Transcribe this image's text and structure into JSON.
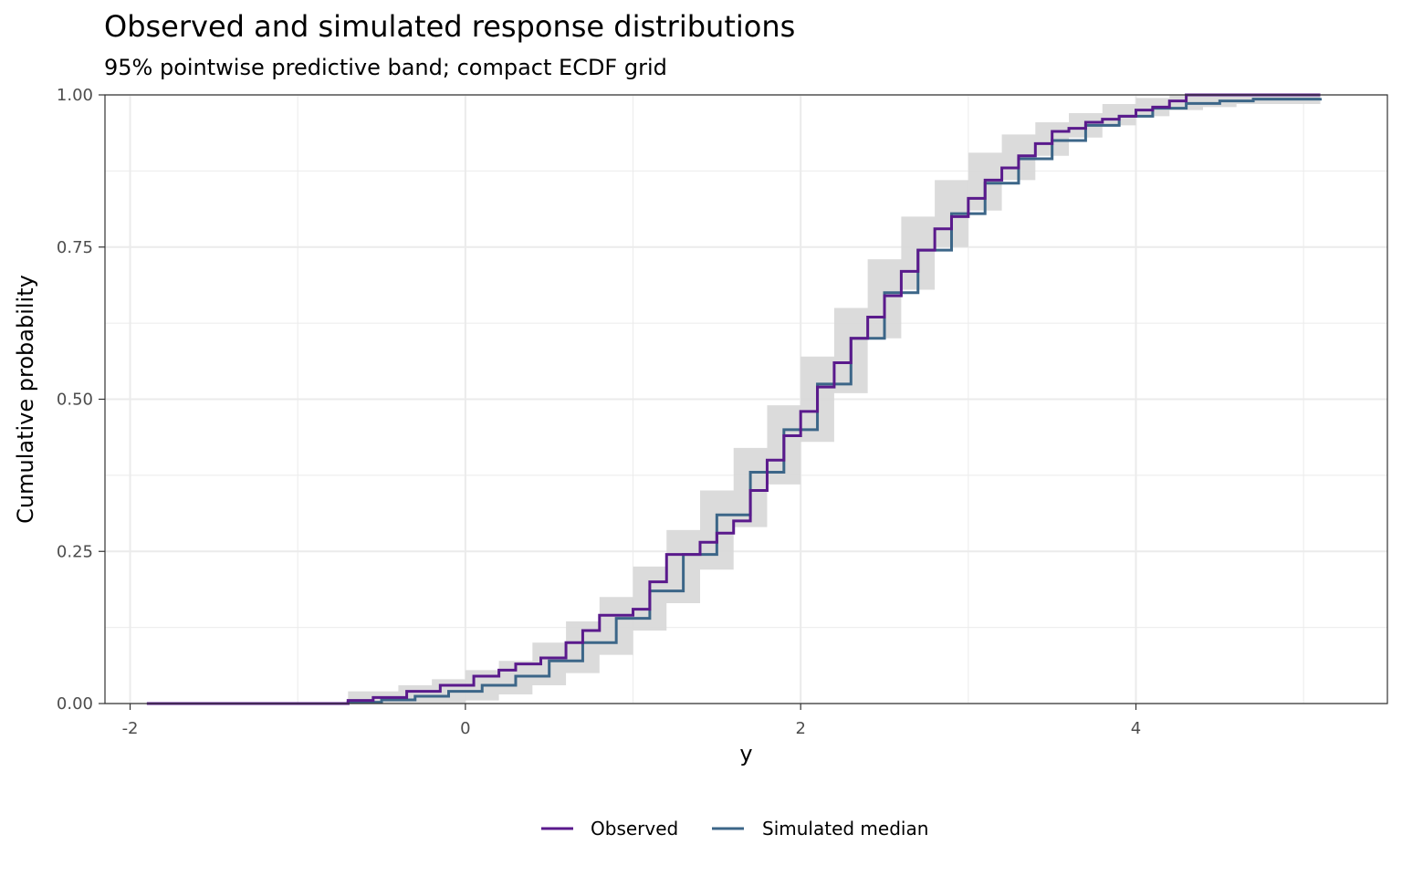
{
  "chart_data": {
    "type": "line",
    "title": "Observed and simulated response distributions",
    "subtitle": "95% pointwise predictive band; compact ECDF grid",
    "xlabel": "y",
    "ylabel": "Cumulative probability",
    "xlim": [
      -2.15,
      5.5
    ],
    "ylim": [
      0,
      1
    ],
    "x_ticks": [
      -2,
      0,
      2,
      4
    ],
    "x_tick_labels": [
      "-2",
      "0",
      "2",
      "4"
    ],
    "y_ticks": [
      0,
      0.25,
      0.5,
      0.75,
      1
    ],
    "y_tick_labels": [
      "0.00",
      "0.25",
      "0.50",
      "0.75",
      "1.00"
    ],
    "grid": true,
    "legend_position": "bottom",
    "colors": {
      "observed": "#5a1a8c",
      "simulated": "#3c6688",
      "band": "#d9d9d9",
      "grid": "#ebebeb",
      "panel_border": "#333333"
    },
    "band": {
      "x": [
        -0.7,
        -0.4,
        -0.2,
        0.0,
        0.2,
        0.4,
        0.6,
        0.8,
        1.0,
        1.2,
        1.4,
        1.6,
        1.8,
        2.0,
        2.2,
        2.4,
        2.6,
        2.8,
        3.0,
        3.2,
        3.4,
        3.6,
        3.8,
        4.0,
        4.2,
        4.4,
        4.6,
        4.8,
        5.1
      ],
      "lower": [
        0.0,
        0.0,
        0.0,
        0.005,
        0.015,
        0.03,
        0.05,
        0.08,
        0.12,
        0.165,
        0.22,
        0.29,
        0.36,
        0.43,
        0.51,
        0.6,
        0.68,
        0.75,
        0.81,
        0.86,
        0.9,
        0.93,
        0.95,
        0.965,
        0.975,
        0.98,
        0.985,
        0.985,
        0.985
      ],
      "upper": [
        0.02,
        0.03,
        0.04,
        0.055,
        0.07,
        0.1,
        0.135,
        0.175,
        0.225,
        0.285,
        0.35,
        0.42,
        0.49,
        0.57,
        0.65,
        0.73,
        0.8,
        0.86,
        0.905,
        0.935,
        0.955,
        0.97,
        0.985,
        0.995,
        1.0,
        1.0,
        1.0,
        1.0,
        1.0
      ]
    },
    "series": [
      {
        "name": "Observed",
        "x": [
          -1.9,
          -0.7,
          -0.55,
          -0.35,
          -0.15,
          0.05,
          0.2,
          0.3,
          0.45,
          0.6,
          0.7,
          0.8,
          1.0,
          1.1,
          1.2,
          1.4,
          1.5,
          1.6,
          1.7,
          1.8,
          1.9,
          2.0,
          2.1,
          2.2,
          2.3,
          2.4,
          2.5,
          2.6,
          2.7,
          2.8,
          2.9,
          3.0,
          3.1,
          3.2,
          3.3,
          3.4,
          3.5,
          3.6,
          3.7,
          3.8,
          3.9,
          4.0,
          4.1,
          4.2,
          4.3,
          5.1
        ],
        "y": [
          0.0,
          0.005,
          0.01,
          0.02,
          0.03,
          0.045,
          0.055,
          0.065,
          0.075,
          0.1,
          0.12,
          0.145,
          0.155,
          0.2,
          0.245,
          0.265,
          0.28,
          0.3,
          0.35,
          0.4,
          0.44,
          0.48,
          0.52,
          0.56,
          0.6,
          0.635,
          0.67,
          0.71,
          0.745,
          0.78,
          0.8,
          0.83,
          0.86,
          0.88,
          0.9,
          0.92,
          0.94,
          0.945,
          0.955,
          0.96,
          0.965,
          0.975,
          0.98,
          0.99,
          1.0,
          1.0
        ]
      },
      {
        "name": "Simulated median",
        "x": [
          -1.9,
          -0.7,
          -0.5,
          -0.3,
          -0.1,
          0.1,
          0.3,
          0.5,
          0.7,
          0.9,
          1.1,
          1.3,
          1.5,
          1.7,
          1.9,
          2.1,
          2.3,
          2.5,
          2.7,
          2.9,
          3.1,
          3.3,
          3.5,
          3.7,
          3.9,
          4.1,
          4.3,
          4.5,
          4.7,
          5.1
        ],
        "y": [
          0.0,
          0.002,
          0.006,
          0.012,
          0.02,
          0.03,
          0.045,
          0.07,
          0.1,
          0.14,
          0.185,
          0.245,
          0.31,
          0.38,
          0.45,
          0.525,
          0.6,
          0.675,
          0.745,
          0.805,
          0.855,
          0.895,
          0.925,
          0.95,
          0.965,
          0.978,
          0.986,
          0.99,
          0.993,
          0.995
        ]
      }
    ]
  }
}
